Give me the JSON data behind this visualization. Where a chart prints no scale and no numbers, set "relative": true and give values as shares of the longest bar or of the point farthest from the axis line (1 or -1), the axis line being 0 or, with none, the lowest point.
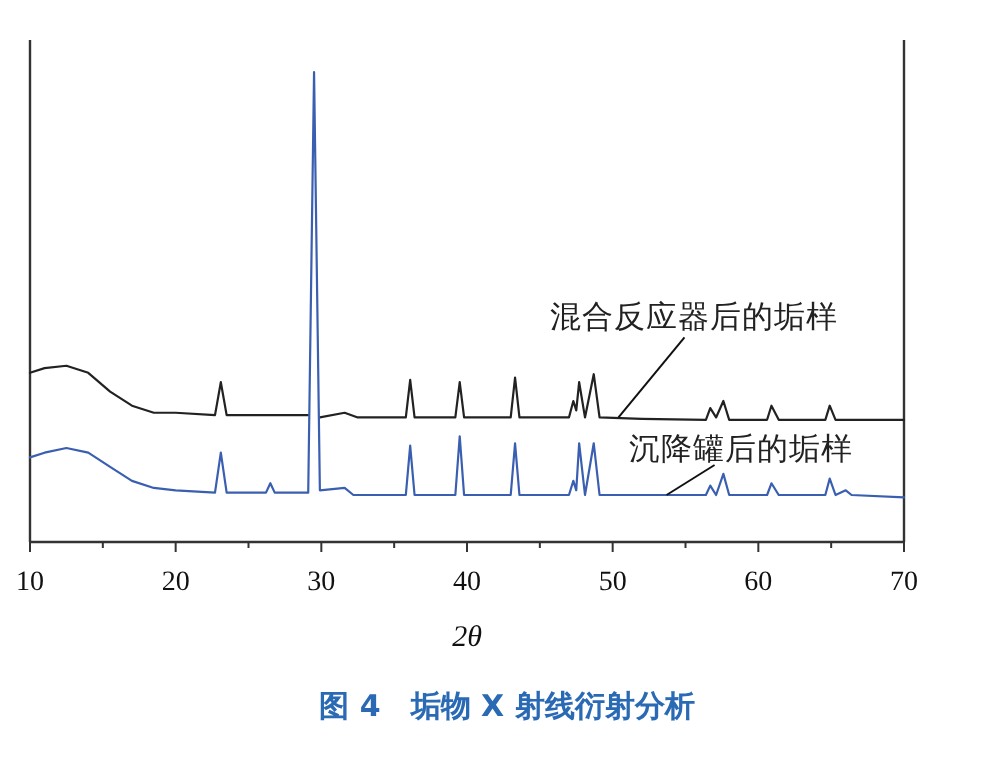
{
  "chart_data": {
    "type": "line",
    "title": "图 4　垢物 X 射线衍射分析",
    "xlabel": "2θ",
    "relative": true,
    "xlim": [
      10,
      70
    ],
    "xticks": [
      10,
      {
        "value": 15,
        "label": null
      },
      20,
      {
        "value": 25,
        "label": null
      },
      30,
      {
        "value": 35,
        "label": null
      },
      40,
      {
        "value": 45,
        "label": null
      },
      50,
      {
        "value": 55,
        "label": null
      },
      60,
      {
        "value": 65,
        "label": null
      },
      70
    ],
    "series": [
      {
        "color": "#222222",
        "x": [
          10,
          11,
          12.5,
          14,
          15.5,
          17,
          18.5,
          20,
          22.7,
          23.1,
          23.5,
          26.5,
          29.1,
          29.5,
          29.9,
          31.6,
          32.5,
          35.8,
          36.1,
          36.4,
          39.2,
          39.5,
          39.8,
          43.0,
          43.3,
          43.6,
          47.0,
          47.3,
          47.5,
          47.7,
          48.1,
          48.7,
          49.1,
          52,
          56.4,
          56.7,
          57.1,
          57.6,
          58.0,
          60.6,
          60.9,
          61.4,
          64.6,
          64.9,
          65.3,
          70
        ],
        "values": [
          0.36,
          0.37,
          0.375,
          0.36,
          0.32,
          0.29,
          0.275,
          0.275,
          0.27,
          0.34,
          0.27,
          0.27,
          0.27,
          null,
          0.265,
          0.275,
          0.265,
          0.265,
          0.345,
          0.265,
          0.265,
          0.34,
          0.265,
          0.265,
          0.35,
          0.265,
          0.265,
          0.3,
          0.28,
          0.34,
          0.265,
          0.357,
          0.265,
          0.262,
          0.26,
          0.285,
          0.265,
          0.3,
          0.26,
          0.26,
          0.29,
          0.26,
          0.26,
          0.29,
          0.26,
          0.26
        ]
      },
      {
        "color": "#3a5fb0",
        "x": [
          10,
          11,
          12.5,
          14,
          15.5,
          17,
          18.5,
          20,
          22.7,
          23.1,
          23.5,
          26.2,
          26.5,
          26.8,
          29.1,
          29.5,
          29.9,
          31.6,
          32.2,
          35.8,
          36.1,
          36.4,
          39.2,
          39.5,
          39.8,
          43.0,
          43.3,
          43.6,
          47.0,
          47.3,
          47.5,
          47.7,
          48.1,
          48.7,
          49.1,
          52,
          56.4,
          56.7,
          57.1,
          57.6,
          58.0,
          60.6,
          60.9,
          61.4,
          64.6,
          64.9,
          65.3,
          66,
          66.4,
          70
        ],
        "values": [
          0.18,
          0.19,
          0.2,
          0.19,
          0.16,
          0.13,
          0.115,
          0.11,
          0.105,
          0.19,
          0.105,
          0.105,
          0.125,
          0.105,
          0.105,
          1,
          0.11,
          0.115,
          0.1,
          0.1,
          0.205,
          0.1,
          0.1,
          0.225,
          0.1,
          0.1,
          0.21,
          0.1,
          0.1,
          0.13,
          0.11,
          0.21,
          0.1,
          0.21,
          0.1,
          0.1,
          0.1,
          0.12,
          0.1,
          0.145,
          0.1,
          0.1,
          0.125,
          0.1,
          0.1,
          0.135,
          0.1,
          0.11,
          0.1,
          0.095
        ]
      }
    ],
    "annotations": [
      {
        "text": "混合反应器后的垢样",
        "x": 50.4,
        "y": 0.265
      },
      {
        "text": "沉降罐后的垢样",
        "x": 53.7,
        "y": 0.1
      }
    ]
  }
}
